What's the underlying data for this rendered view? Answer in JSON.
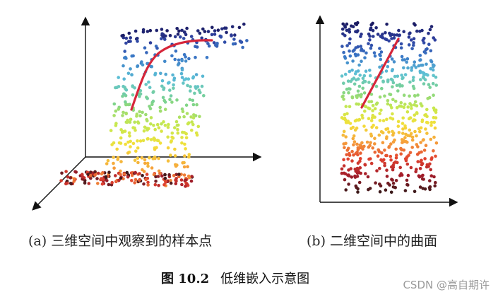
{
  "captions": {
    "panel_a": "(a) 三维空间中观察到的样本点",
    "panel_b": "(b) 二维空间中的曲面"
  },
  "figure_title": {
    "label": "图 10.2",
    "text": "低维嵌入示意图"
  },
  "watermark": "CSDN @高自期许",
  "colors": {
    "axis": "#111111",
    "curve": "#d6263a",
    "gradient_top_to_bottom": [
      "#1a1a60",
      "#2e3f9e",
      "#3b79c7",
      "#5ec1d6",
      "#7fd48a",
      "#c7e84f",
      "#f3e03a",
      "#f6a23b",
      "#e2432f",
      "#a31d2a",
      "#3a1a1a"
    ]
  }
}
